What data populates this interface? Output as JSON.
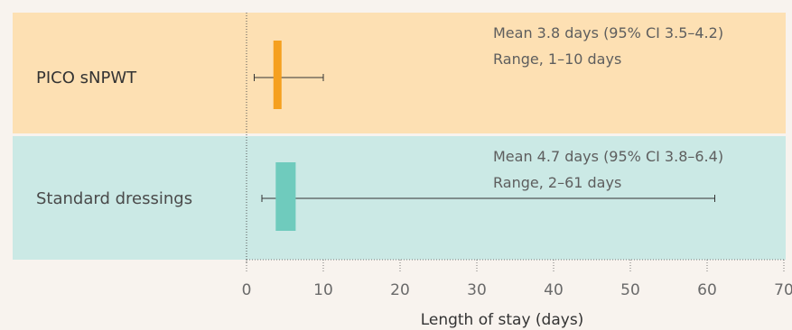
{
  "chart_data": {
    "type": "bar",
    "xlabel": "Length of stay (days)",
    "xlim": [
      0,
      70
    ],
    "xticks": [
      0,
      10,
      20,
      30,
      40,
      50,
      60,
      70
    ],
    "grid": "dotted vertical at ticks",
    "rows": [
      {
        "label": "PICO sNPWT",
        "mean": 3.8,
        "ci": [
          3.5,
          4.2
        ],
        "range": [
          1,
          10
        ],
        "annotation_mean": "Mean 3.8 days (95% CI 3.5–4.2)",
        "annotation_range": "Range, 1–10 days",
        "band_color": "#fde0b3",
        "bar_color": "#f5a01f"
      },
      {
        "label": "Standard dressings",
        "mean": 4.7,
        "ci": [
          3.8,
          6.4
        ],
        "range": [
          2,
          61
        ],
        "annotation_mean": "Mean 4.7 days (95% CI 3.8–6.4)",
        "annotation_range": "Range, 2–61 days",
        "band_color": "#cbe9e5",
        "bar_color": "#6fcbbd"
      }
    ]
  }
}
